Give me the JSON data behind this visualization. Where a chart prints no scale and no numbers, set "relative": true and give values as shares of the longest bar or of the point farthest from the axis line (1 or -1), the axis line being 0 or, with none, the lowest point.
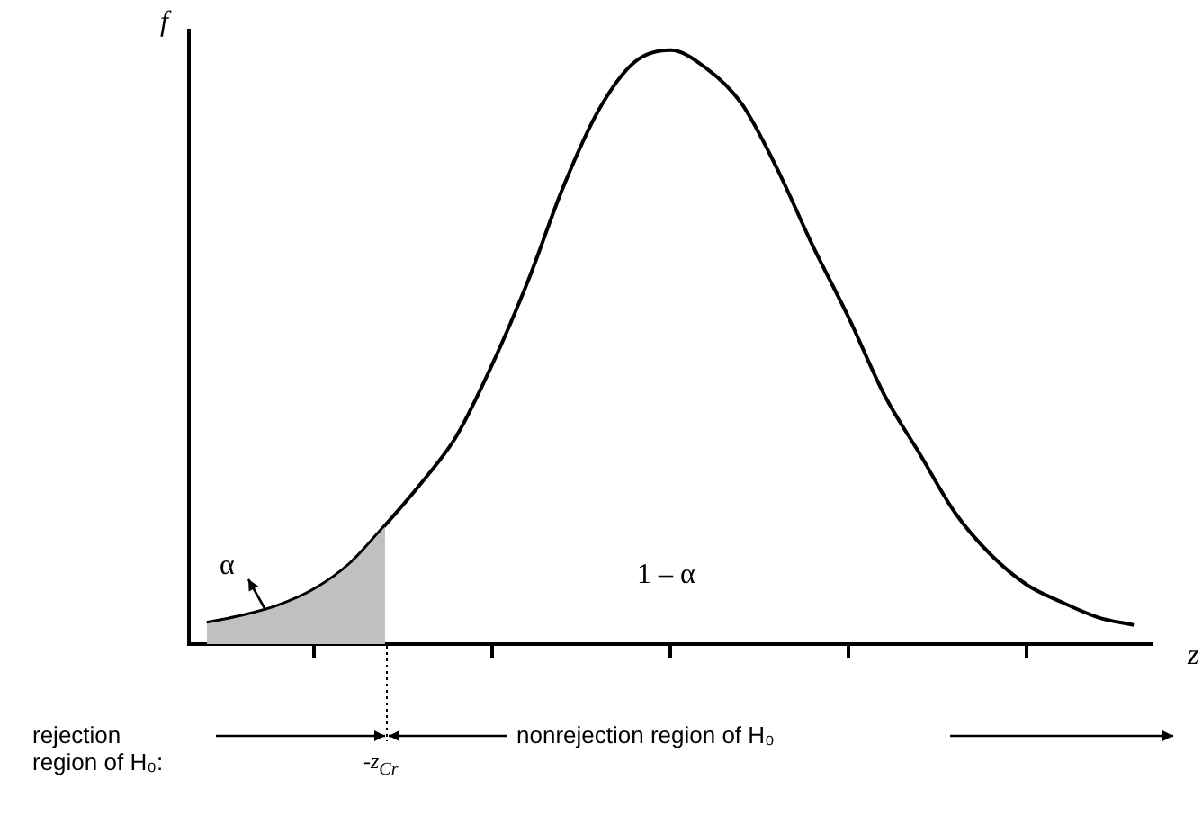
{
  "chart_data": {
    "type": "line",
    "xlabel": "z",
    "ylabel": "f",
    "relative": true,
    "tick_labels": false,
    "categories": [
      null,
      null,
      null,
      null,
      null,
      null,
      null,
      null,
      null,
      null,
      null,
      null,
      null,
      null,
      null,
      null,
      null,
      null,
      null,
      null,
      null,
      null,
      null,
      null,
      null,
      null,
      null
    ],
    "series": [
      {
        "type": "area",
        "color": "#c0c0c0",
        "values": [
          0.036,
          0.048,
          0.065,
          0.092,
          0.135,
          0.2,
          null,
          null,
          null,
          null,
          null,
          null,
          null,
          null,
          null,
          null,
          null,
          null,
          null,
          null,
          null,
          null,
          null,
          null,
          null,
          null,
          null
        ]
      },
      {
        "color": "#000000",
        "values": [
          0.036,
          0.048,
          0.065,
          0.092,
          0.135,
          0.2,
          0.27,
          0.35,
          0.47,
          0.61,
          0.77,
          0.9,
          0.98,
          1.0,
          0.97,
          0.91,
          0.8,
          0.67,
          0.55,
          0.42,
          0.32,
          0.22,
          0.15,
          0.1,
          0.07,
          0.045,
          0.032
        ]
      }
    ],
    "annotations": [
      "α",
      "1 – α",
      "rejection region of H₀:",
      "nonrejection region of H₀",
      "-z$_{Cr}$"
    ]
  }
}
